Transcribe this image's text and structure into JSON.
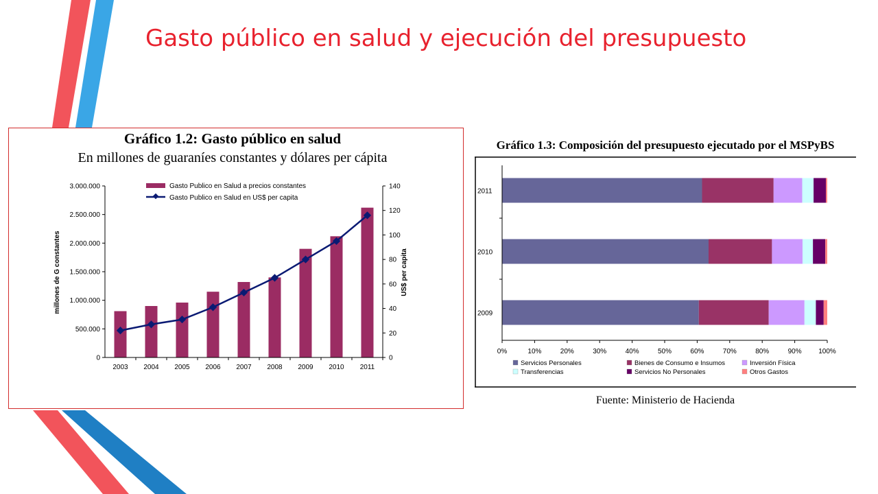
{
  "slide": {
    "title": "Gasto público en salud y ejecución del presupuesto"
  },
  "colors": {
    "title": "#e8222e",
    "stripe_red": "#f2545b",
    "stripe_blue": "#3aa6e6",
    "stripe_dark_blue": "#1f7fc4",
    "panel_border": "#d22b2b"
  },
  "chart_data": [
    {
      "type": "bar",
      "title": "Gráfico 1.2: Gasto público en salud",
      "subtitle": "En millones de guaraníes constantes y dólares per cápita",
      "categories": [
        "2003",
        "2004",
        "2005",
        "2006",
        "2007",
        "2008",
        "2009",
        "2010",
        "2011"
      ],
      "ylabel": "millones de G constantes",
      "y2label": "US$ per capita",
      "ylim": [
        0,
        3000000
      ],
      "y2lim": [
        0,
        140
      ],
      "yticks": [
        "0",
        "500.000",
        "1.000.000",
        "1.500.000",
        "2.000.000",
        "2.500.000",
        "3.000.000"
      ],
      "y2ticks": [
        "0",
        "20",
        "40",
        "60",
        "80",
        "100",
        "120",
        "140"
      ],
      "legend_position": "top",
      "series": [
        {
          "name": "Gasto Publico en Salud a precios constantes",
          "kind": "bar",
          "color": "#9b2c63",
          "values": [
            810000,
            900000,
            960000,
            1150000,
            1320000,
            1400000,
            1900000,
            2120000,
            2620000
          ]
        },
        {
          "name": "Gasto Publico en Salud en US$ per capita",
          "kind": "line",
          "axis": "y2",
          "color": "#0a1a73",
          "values": [
            22,
            27,
            31,
            41,
            53,
            65,
            80,
            95,
            116
          ]
        }
      ]
    },
    {
      "type": "bar",
      "orientation": "horizontal",
      "stacked": "percent",
      "title": "Gráfico 1.3: Composición del presupuesto ejecutado por el MSPyBS",
      "categories": [
        "2011",
        "2010",
        "2009"
      ],
      "xticks": [
        "0%",
        "10%",
        "20%",
        "30%",
        "40%",
        "50%",
        "60%",
        "70%",
        "80%",
        "90%",
        "100%"
      ],
      "xlim": [
        0,
        100
      ],
      "legend_position": "bottom",
      "series": [
        {
          "name": "Servicios Personales",
          "color": "#666699",
          "values": [
            61.5,
            63.5,
            60.5
          ]
        },
        {
          "name": "Bienes de Consumo e Insumos",
          "color": "#993366",
          "values": [
            22.0,
            19.5,
            21.5
          ]
        },
        {
          "name": "Inversión Física",
          "color": "#cc99ff",
          "values": [
            8.8,
            9.4,
            11.0
          ]
        },
        {
          "name": "Transferencias",
          "color": "#ccffff",
          "values": [
            3.5,
            3.2,
            3.5
          ]
        },
        {
          "name": "Servicios No Personales",
          "color": "#660066",
          "values": [
            3.8,
            3.8,
            2.4
          ]
        },
        {
          "name": "Otros Gastos",
          "color": "#ff8080",
          "values": [
            0.4,
            0.6,
            1.1
          ]
        }
      ],
      "source": "Fuente: Ministerio de Hacienda"
    }
  ]
}
